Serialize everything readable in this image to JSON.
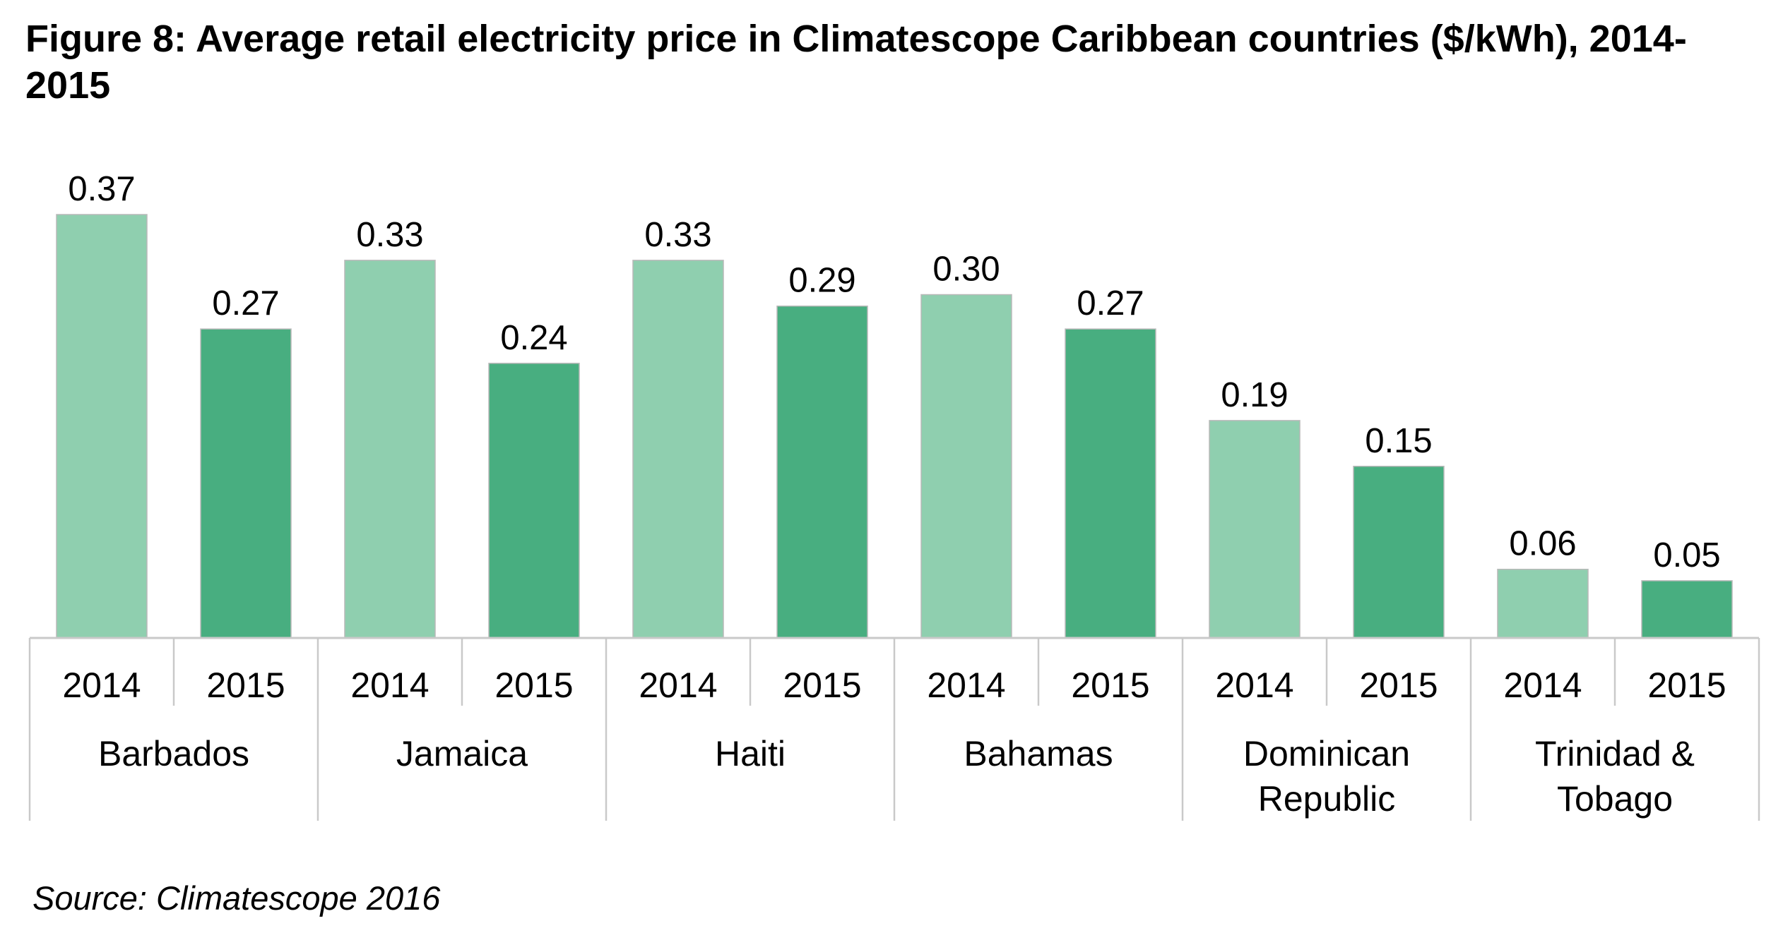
{
  "title": "Figure 8: Average retail electricity price in Climatescope Caribbean countries ($/kWh), 2014-2015",
  "source": "Source: Climatescope 2016",
  "colors": {
    "2014": "#8fcfaf",
    "2015": "#48ae80",
    "axis": "#c9c9c9"
  },
  "chart_data": {
    "type": "bar",
    "title": "Figure 8: Average retail electricity price in Climatescope Caribbean countries ($/kWh), 2014-2015",
    "xlabel": "",
    "ylabel": "",
    "ylim": [
      0,
      0.37
    ],
    "grid": false,
    "legend": "none",
    "groups": [
      {
        "country": [
          "Barbados"
        ],
        "bars": [
          {
            "year": "2014",
            "value": 0.37,
            "label": "0.37"
          },
          {
            "year": "2015",
            "value": 0.27,
            "label": "0.27"
          }
        ]
      },
      {
        "country": [
          "Jamaica"
        ],
        "bars": [
          {
            "year": "2014",
            "value": 0.33,
            "label": "0.33"
          },
          {
            "year": "2015",
            "value": 0.24,
            "label": "0.24"
          }
        ]
      },
      {
        "country": [
          "Haiti"
        ],
        "bars": [
          {
            "year": "2014",
            "value": 0.33,
            "label": "0.33"
          },
          {
            "year": "2015",
            "value": 0.29,
            "label": "0.29"
          }
        ]
      },
      {
        "country": [
          "Bahamas"
        ],
        "bars": [
          {
            "year": "2014",
            "value": 0.3,
            "label": "0.30"
          },
          {
            "year": "2015",
            "value": 0.27,
            "label": "0.27"
          }
        ]
      },
      {
        "country": [
          "Dominican",
          "Republic"
        ],
        "bars": [
          {
            "year": "2014",
            "value": 0.19,
            "label": "0.19"
          },
          {
            "year": "2015",
            "value": 0.15,
            "label": "0.15"
          }
        ]
      },
      {
        "country": [
          "Trinidad &",
          "Tobago"
        ],
        "bars": [
          {
            "year": "2014",
            "value": 0.06,
            "label": "0.06"
          },
          {
            "year": "2015",
            "value": 0.05,
            "label": "0.05"
          }
        ]
      }
    ]
  }
}
